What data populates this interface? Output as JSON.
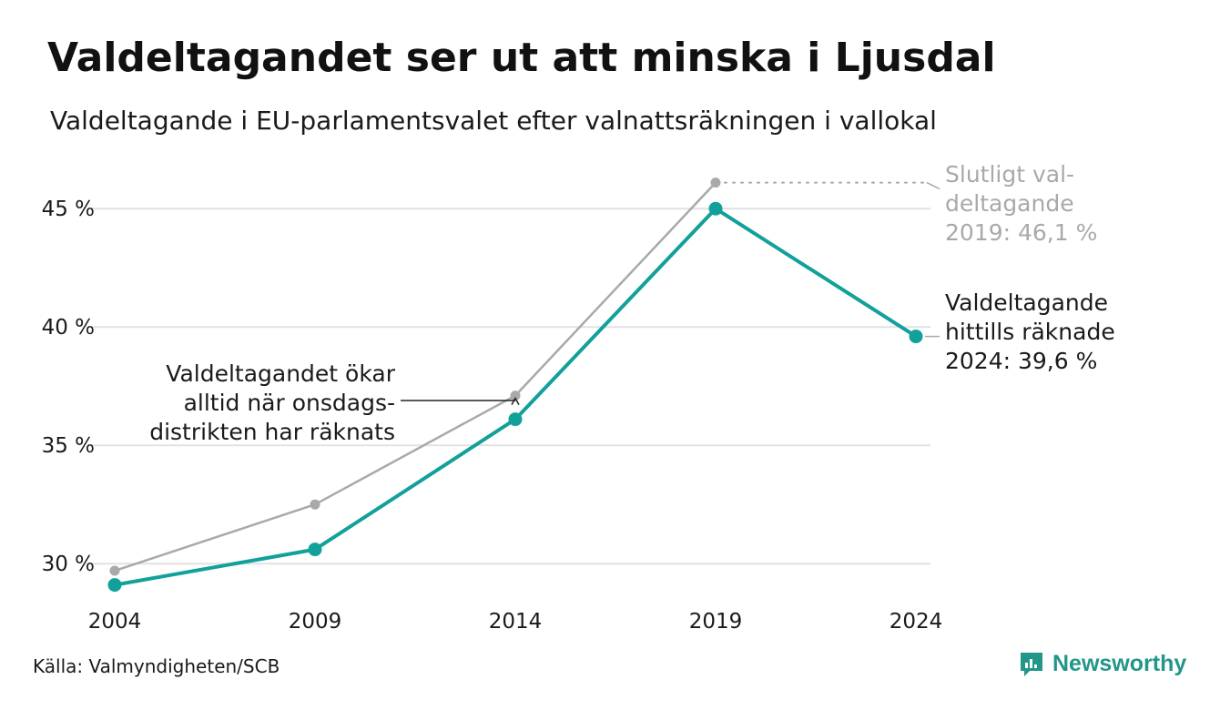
{
  "title": "Valdeltagandet ser ut att minska i Ljusdal",
  "subtitle": "Valdeltagande i EU-parlamentsvalet efter valnattsräkningen i vallokal",
  "source": "Källa: Valmyndigheten/SCB",
  "brand": "Newsworthy",
  "colors": {
    "preliminary": "#12a19a",
    "final": "#a9a9a9",
    "grid": "#e2e2e2",
    "text": "#1a1a1a",
    "muted": "#a9a9a9",
    "brand": "#23968a"
  },
  "chart_data": {
    "type": "line",
    "x": [
      "2004",
      "2009",
      "2014",
      "2019",
      "2024"
    ],
    "ylim": [
      28.2,
      47.2
    ],
    "yticks": [
      30,
      35,
      40,
      45
    ],
    "ytick_labels": [
      "30 %",
      "35 %",
      "40 %",
      "45 %"
    ],
    "grid": true,
    "series": [
      {
        "key": "final",
        "values": [
          29.7,
          32.5,
          37.1,
          46.1,
          null
        ]
      },
      {
        "key": "preliminary",
        "values": [
          29.1,
          30.6,
          36.1,
          45.0,
          39.6
        ]
      }
    ],
    "annotations": {
      "final_2019": [
        "Slutligt val-",
        "deltagande",
        "2019: 46,1 %"
      ],
      "current_2024": [
        "Valdeltagande",
        "hittills räknade",
        "2024: 39,6 %"
      ],
      "note": [
        "Valdeltagandet ökar",
        "alltid när onsdags-",
        "distrikten har räknats"
      ]
    }
  }
}
